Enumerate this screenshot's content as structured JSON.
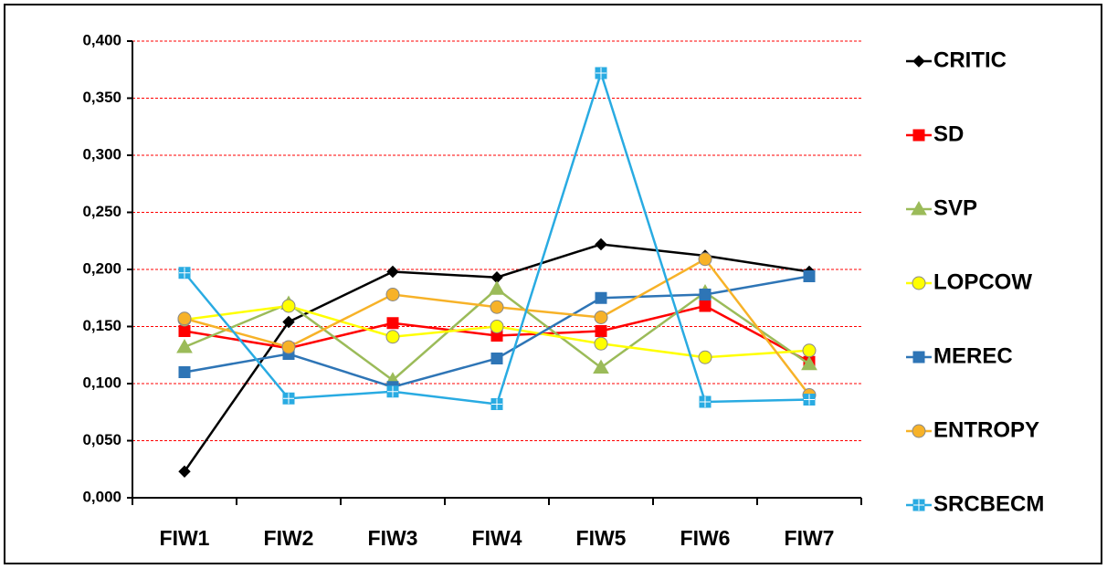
{
  "chart_data": {
    "type": "line",
    "categories": [
      "FIW1",
      "FIW2",
      "FIW3",
      "FIW4",
      "FIW5",
      "FIW6",
      "FIW7"
    ],
    "series": [
      {
        "name": "CRITIC",
        "color": "#000000",
        "marker": "diamond",
        "values": [
          0.023,
          0.154,
          0.198,
          0.193,
          0.222,
          0.212,
          0.198
        ]
      },
      {
        "name": "SD",
        "color": "#ff0000",
        "marker": "square",
        "values": [
          0.146,
          0.131,
          0.153,
          0.142,
          0.146,
          0.168,
          0.119
        ]
      },
      {
        "name": "SVP",
        "color": "#9bbb59",
        "marker": "triangle",
        "values": [
          0.132,
          0.17,
          0.103,
          0.183,
          0.114,
          0.18,
          0.117
        ]
      },
      {
        "name": "LOPCOW",
        "color": "#ffff00",
        "marker": "circle",
        "values": [
          0.156,
          0.168,
          0.141,
          0.15,
          0.135,
          0.123,
          0.129
        ]
      },
      {
        "name": "MEREC",
        "color": "#2e75b6",
        "marker": "square",
        "values": [
          0.11,
          0.126,
          0.097,
          0.122,
          0.175,
          0.178,
          0.194
        ]
      },
      {
        "name": "ENTROPY",
        "color": "#f7b228",
        "marker": "circle",
        "values": [
          0.157,
          0.132,
          0.178,
          0.167,
          0.158,
          0.209,
          0.09
        ]
      },
      {
        "name": "SRCBECM",
        "color": "#29abe2",
        "marker": "square-cross",
        "values": [
          0.197,
          0.087,
          0.093,
          0.082,
          0.372,
          0.084,
          0.086
        ]
      }
    ],
    "ylim": [
      0,
      0.4
    ],
    "yticks": [
      {
        "value": 0,
        "label": "0,000"
      },
      {
        "value": 0.05,
        "label": "0,050"
      },
      {
        "value": 0.1,
        "label": "0,100"
      },
      {
        "value": 0.15,
        "label": "0,150"
      },
      {
        "value": 0.2,
        "label": "0,200"
      },
      {
        "value": 0.25,
        "label": "0,250"
      },
      {
        "value": 0.3,
        "label": "0,300"
      },
      {
        "value": 0.35,
        "label": "0,350"
      },
      {
        "value": 0.4,
        "label": "0,400"
      }
    ],
    "grid": true,
    "grid_color": "#ff0000",
    "legend": "right"
  }
}
